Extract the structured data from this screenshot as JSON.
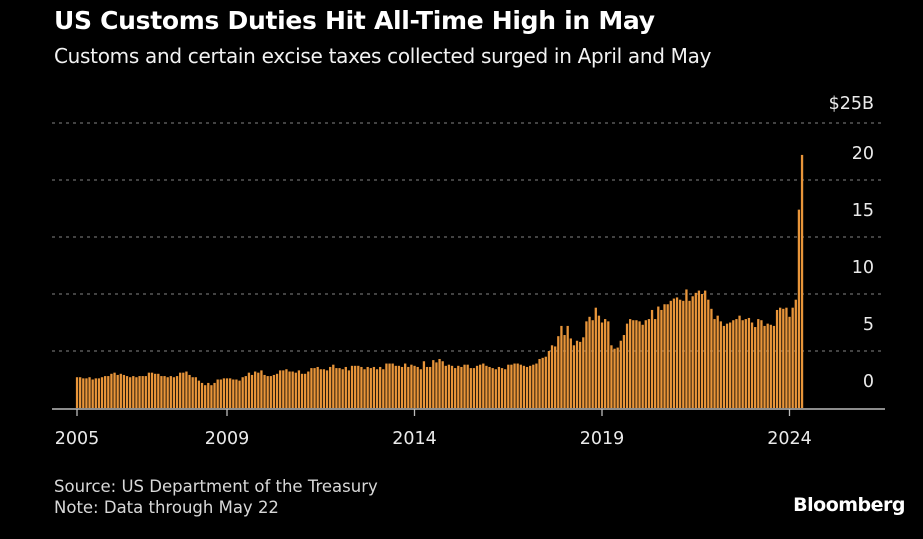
{
  "header": {
    "title": "US Customs Duties Hit All-Time High in May",
    "subtitle": "Customs and certain excise taxes collected surged in April and May"
  },
  "footer": {
    "source": "Source: US Department of the Treasury",
    "note": "Note: Data through May 22",
    "brand": "Bloomberg"
  },
  "colors": {
    "bar": "#e8953a",
    "grid": "#6a6a6a",
    "axis": "#bbbbbb"
  },
  "chart_data": {
    "type": "bar",
    "title": "US Customs Duties Hit All-Time High in May",
    "xlabel": "",
    "ylabel": "",
    "unit_label": "$25B",
    "start": "2005-01",
    "frequency": "monthly",
    "ylim": [
      0,
      25
    ],
    "grid": true,
    "yticks": [
      0,
      5,
      10,
      15,
      20,
      25
    ],
    "ytick_labels": [
      "0",
      "5",
      "10",
      "15",
      "20",
      "$25B"
    ],
    "xticks": [
      2005,
      2009,
      2014,
      2019,
      2024
    ],
    "xtick_labels": [
      "2005",
      "2009",
      "2014",
      "2019",
      "2024"
    ],
    "values": [
      2.7,
      2.7,
      2.6,
      2.6,
      2.7,
      2.5,
      2.6,
      2.6,
      2.7,
      2.8,
      2.8,
      3.0,
      3.1,
      2.9,
      3.0,
      2.9,
      2.8,
      2.7,
      2.8,
      2.7,
      2.8,
      2.8,
      2.8,
      3.1,
      3.1,
      3.0,
      3.0,
      2.8,
      2.8,
      2.7,
      2.8,
      2.7,
      2.8,
      3.1,
      3.1,
      3.2,
      2.9,
      2.7,
      2.7,
      2.4,
      2.2,
      2.0,
      2.2,
      2.0,
      2.2,
      2.5,
      2.5,
      2.6,
      2.6,
      2.6,
      2.5,
      2.5,
      2.4,
      2.7,
      2.8,
      3.1,
      2.9,
      3.2,
      3.1,
      3.3,
      2.9,
      2.8,
      2.8,
      2.9,
      3.0,
      3.3,
      3.3,
      3.4,
      3.2,
      3.2,
      3.1,
      3.3,
      3.0,
      3.0,
      3.2,
      3.5,
      3.5,
      3.6,
      3.4,
      3.4,
      3.3,
      3.6,
      3.8,
      3.5,
      3.5,
      3.4,
      3.6,
      3.3,
      3.7,
      3.7,
      3.7,
      3.6,
      3.4,
      3.6,
      3.5,
      3.6,
      3.4,
      3.6,
      3.4,
      3.9,
      3.9,
      3.9,
      3.7,
      3.7,
      3.6,
      3.9,
      3.6,
      3.8,
      3.7,
      3.6,
      3.4,
      4.1,
      3.6,
      3.6,
      4.2,
      4.0,
      4.3,
      4.1,
      3.7,
      3.8,
      3.7,
      3.5,
      3.7,
      3.6,
      3.8,
      3.8,
      3.5,
      3.5,
      3.7,
      3.8,
      3.9,
      3.7,
      3.6,
      3.5,
      3.4,
      3.6,
      3.5,
      3.4,
      3.8,
      3.8,
      3.9,
      3.9,
      3.8,
      3.7,
      3.6,
      3.7,
      3.8,
      3.9,
      4.3,
      4.4,
      4.5,
      5.0,
      5.5,
      5.4,
      6.3,
      7.2,
      6.4,
      7.2,
      6.1,
      5.5,
      5.9,
      5.8,
      6.2,
      7.6,
      8.0,
      7.7,
      8.8,
      8.1,
      7.5,
      7.8,
      7.6,
      5.5,
      5.2,
      5.3,
      5.9,
      6.4,
      7.4,
      7.8,
      7.7,
      7.7,
      7.6,
      7.3,
      7.7,
      7.8,
      8.6,
      7.8,
      8.9,
      8.6,
      9.1,
      9.1,
      9.4,
      9.6,
      9.7,
      9.5,
      9.4,
      10.4,
      9.4,
      9.8,
      10.1,
      10.3,
      10.0,
      10.3,
      9.5,
      8.7,
      7.8,
      8.1,
      7.6,
      7.2,
      7.4,
      7.5,
      7.7,
      7.8,
      8.1,
      7.7,
      7.8,
      7.9,
      7.5,
      7.1,
      7.8,
      7.7,
      7.2,
      7.4,
      7.3,
      7.2,
      8.6,
      8.8,
      8.7,
      8.8,
      8.0,
      8.8,
      9.5,
      17.4,
      22.2
    ]
  }
}
